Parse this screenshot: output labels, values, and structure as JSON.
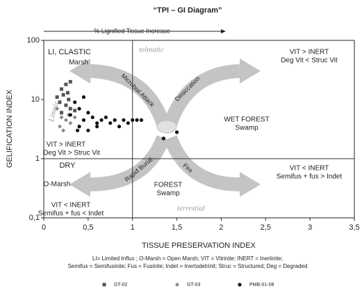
{
  "chart_data": {
    "type": "scatter",
    "title": "“TPI – GI Diagram”",
    "top_arrow_label": "% Lignified Tissue Increase",
    "x_label": "TISSUE PRESERVATION INDEX",
    "y_label": "GELIFICATION INDEX",
    "xlim": [
      0,
      3.5
    ],
    "ylim": [
      0.1,
      100
    ],
    "yscale": "log",
    "xticks": [
      0,
      {
        "value": 0.5,
        "label": "0,5"
      },
      1,
      {
        "value": 1.5,
        "label": "1,5"
      },
      2,
      {
        "value": 2.5,
        "label": "2,5"
      },
      3,
      {
        "value": 3.5,
        "label": "3,5"
      }
    ],
    "yticks": [
      {
        "value": 0.1,
        "label": "0,1"
      },
      1,
      10,
      100
    ],
    "reference_lines": {
      "x": 1,
      "y": 1
    },
    "series": [
      {
        "name": "GT-02",
        "marker": "square",
        "color": "#555555",
        "x": [
          0.2,
          0.25,
          0.3,
          0.22,
          0.28,
          0.18,
          0.25,
          0.3,
          0.2,
          0.35,
          0.15,
          0.27
        ],
        "values": [
          15,
          18,
          20,
          12,
          10,
          9,
          8,
          7,
          6,
          6.5,
          11,
          13
        ]
      },
      {
        "name": "GT-03",
        "marker": "diamond",
        "color": "#888888",
        "x": [
          0.15,
          0.2,
          0.25,
          0.3,
          0.18,
          0.35,
          0.22,
          0.28
        ],
        "values": [
          7,
          5,
          4.5,
          4,
          3.5,
          5,
          3,
          5.5
        ]
      },
      {
        "name": "PMB-01-08",
        "marker": "circle",
        "color": "#111111",
        "x": [
          0.35,
          0.45,
          0.4,
          0.5,
          0.45,
          0.55,
          0.6,
          0.65,
          0.7,
          0.75,
          0.8,
          0.85,
          0.9,
          0.95,
          1.0,
          1.05,
          1.1,
          0.5,
          0.6,
          0.4,
          1.35,
          1.5,
          0.3,
          0.38
        ],
        "values": [
          9,
          11,
          7,
          6,
          4.5,
          5,
          4,
          4.5,
          5,
          4,
          4.5,
          3.5,
          4.5,
          4,
          4.5,
          4.5,
          4.5,
          3,
          3.5,
          3.5,
          2.2,
          2.8,
          5.5,
          3
        ]
      }
    ],
    "annotations": [
      "LI, CLASTIC",
      "Marsh",
      "telmatic",
      "VIT > INERT",
      "Deg Vit < Struc Vit",
      "Microbial Attack",
      "Desiccation",
      "Limnic",
      "WET FOREST",
      "Swamp",
      "VIT > INERT",
      "Deg Vit > Struc Vit",
      "DRY",
      "VIT < INERT",
      "Semifus + fus > Indet",
      "Rapid Burial",
      "Fire",
      "O-Marsh",
      "FOREST",
      "Swamp",
      "VIT < INERT",
      "Semifus + fus < Indet",
      "terrestial"
    ],
    "footnote": [
      "LI= Limited Influx ; O-Marsh = Open Marsh; VIT = Vitrinite; INERT = Inertinite;",
      "Semifus = Semifusinite; Fus = Fusinite; Indet = Inertodetrinit; Struc = Structured; Deg = Degraded"
    ]
  }
}
